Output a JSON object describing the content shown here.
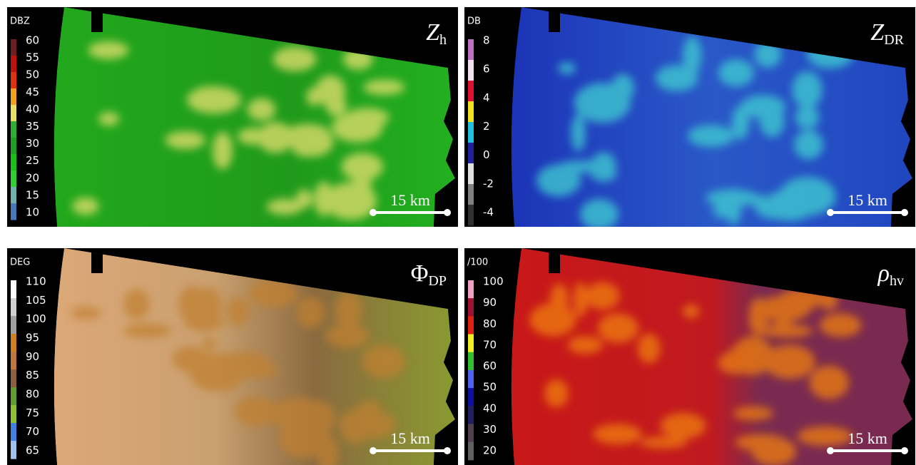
{
  "panels": [
    {
      "unit": "DBZ",
      "ticks": [
        60,
        55,
        50,
        45,
        40,
        35,
        30,
        25,
        20,
        15,
        10
      ],
      "colorbar": [
        "#6a2020",
        "#c01010",
        "#e03010",
        "#f0a020",
        "#e8e060",
        "#30b030",
        "#20a020",
        "#18c018",
        "#30d030",
        "#70b0b0",
        "#4878b8"
      ],
      "title": {
        "main": "Z",
        "sub": "h"
      },
      "scale": "15 km"
    },
    {
      "unit": "DB",
      "ticks": [
        8,
        6,
        4,
        2,
        0,
        -2,
        -4
      ],
      "colorbar": [
        "#c070c0",
        "#f0e0f0",
        "#e01030",
        "#f0e020",
        "#20c0e0",
        "#2020a0",
        "#e0e0e0",
        "#808080",
        "#303030"
      ],
      "title": {
        "main": "Z",
        "sub": "DR"
      },
      "scale": "15 km"
    },
    {
      "unit": "DEG",
      "ticks": [
        110,
        105,
        100,
        95,
        90,
        85,
        80,
        75,
        70,
        65
      ],
      "colorbar": [
        "#ffffff",
        "#d0d0d0",
        "#a0a0a0",
        "#d08020",
        "#c07840",
        "#8a6040",
        "#60a030",
        "#90c030",
        "#4080e0",
        "#a0c0f0"
      ],
      "title": {
        "main": "Φ",
        "sub": "DP"
      },
      "scale": "15 km"
    },
    {
      "unit": "/100",
      "ticks": [
        100,
        90,
        80,
        70,
        60,
        50,
        40,
        30,
        20
      ],
      "colorbar": [
        "#f0a0c0",
        "#a01030",
        "#e02010",
        "#f0f020",
        "#30c030",
        "#5060f0",
        "#1010a0",
        "#202060",
        "#504050",
        "#606060"
      ],
      "title": {
        "main": "ρ",
        "sub": "hv"
      },
      "scale": "15 km"
    }
  ]
}
